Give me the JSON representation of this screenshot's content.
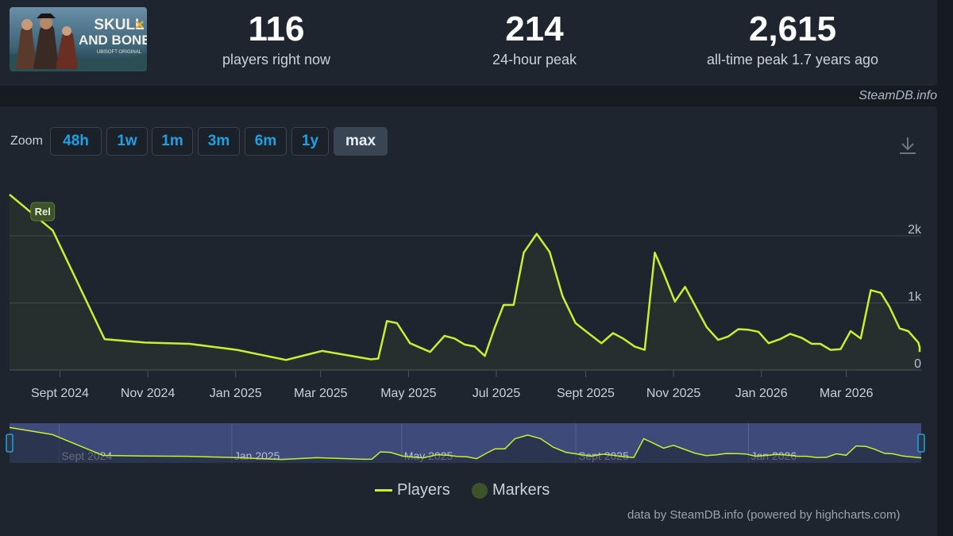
{
  "header": {
    "logo_text_line1": "SKULL",
    "logo_text_line2": "AND BONES",
    "logo_text_line3": "UBISOFT ORIGINAL",
    "stats": [
      {
        "value": "116",
        "label": "players right now"
      },
      {
        "value": "214",
        "label": "24-hour peak"
      },
      {
        "value": "2,615",
        "label": "all-time peak 1.7 years ago"
      }
    ]
  },
  "credit_top": "SteamDB.info",
  "zoom": {
    "label": "Zoom",
    "buttons": [
      "48h",
      "1w",
      "1m",
      "3m",
      "6m",
      "1y",
      "max"
    ],
    "active": "max"
  },
  "legend": {
    "players": "Players",
    "markers": "Markers"
  },
  "credit_bottom": "data by SteamDB.info (powered by highcharts.com)",
  "colors": {
    "line": "#c8f032",
    "marker": "#3d5229",
    "accent": "#1ea0e6",
    "navigator_bg": "#3d4a7a"
  },
  "chart_data": {
    "type": "line",
    "ylim": [
      0,
      2000
    ],
    "yticks": [
      {
        "v": 0,
        "label": "0"
      },
      {
        "v": 1000,
        "label": "1k"
      },
      {
        "v": 2000,
        "label": "2k"
      }
    ],
    "xlim": [
      "2024-07-28",
      "2026-04-22"
    ],
    "xticks": [
      {
        "d": "2024-09-01",
        "label": "Sept 2024"
      },
      {
        "d": "2024-11-01",
        "label": "Nov 2024"
      },
      {
        "d": "2025-01-01",
        "label": "Jan 2025"
      },
      {
        "d": "2025-03-01",
        "label": "Mar 2025"
      },
      {
        "d": "2025-05-01",
        "label": "May 2025"
      },
      {
        "d": "2025-07-01",
        "label": "Jul 2025"
      },
      {
        "d": "2025-09-01",
        "label": "Sept 2025"
      },
      {
        "d": "2025-11-01",
        "label": "Nov 2025"
      },
      {
        "d": "2026-01-01",
        "label": "Jan 2026"
      },
      {
        "d": "2026-03-01",
        "label": "Mar 2026"
      }
    ],
    "navigator_labels": [
      {
        "d": "2024-09-01",
        "label": "Sept 2024"
      },
      {
        "d": "2025-01-01",
        "label": "Jan 2025"
      },
      {
        "d": "2025-05-01",
        "label": "May 2025"
      },
      {
        "d": "2025-09-01",
        "label": "Sept 2025"
      },
      {
        "d": "2026-01-01",
        "label": "Jan 2026"
      }
    ],
    "markers": [
      {
        "d": "2024-08-20",
        "label": "Rel"
      }
    ],
    "series": [
      {
        "name": "Players",
        "points": [
          [
            "2024-07-28",
            2615
          ],
          [
            "2024-08-27",
            2080
          ],
          [
            "2024-10-02",
            460
          ],
          [
            "2024-10-30",
            410
          ],
          [
            "2024-11-30",
            390
          ],
          [
            "2025-01-02",
            300
          ],
          [
            "2025-02-05",
            150
          ],
          [
            "2025-03-02",
            285
          ],
          [
            "2025-04-05",
            160
          ],
          [
            "2025-04-10",
            170
          ],
          [
            "2025-04-16",
            730
          ],
          [
            "2025-04-23",
            700
          ],
          [
            "2025-05-02",
            400
          ],
          [
            "2025-05-16",
            270
          ],
          [
            "2025-05-26",
            510
          ],
          [
            "2025-06-02",
            470
          ],
          [
            "2025-06-09",
            380
          ],
          [
            "2025-06-16",
            350
          ],
          [
            "2025-06-23",
            210
          ],
          [
            "2025-06-30",
            640
          ],
          [
            "2025-07-06",
            970
          ],
          [
            "2025-07-13",
            970
          ],
          [
            "2025-07-20",
            1750
          ],
          [
            "2025-07-29",
            2030
          ],
          [
            "2025-08-07",
            1760
          ],
          [
            "2025-08-16",
            1100
          ],
          [
            "2025-08-25",
            700
          ],
          [
            "2025-09-04",
            530
          ],
          [
            "2025-09-12",
            400
          ],
          [
            "2025-09-20",
            550
          ],
          [
            "2025-09-27",
            470
          ],
          [
            "2025-10-05",
            350
          ],
          [
            "2025-10-12",
            300
          ],
          [
            "2025-10-19",
            1750
          ],
          [
            "2025-10-25",
            1450
          ],
          [
            "2025-11-02",
            1020
          ],
          [
            "2025-11-09",
            1240
          ],
          [
            "2025-11-17",
            920
          ],
          [
            "2025-11-24",
            640
          ],
          [
            "2025-12-02",
            450
          ],
          [
            "2025-12-09",
            500
          ],
          [
            "2025-12-16",
            610
          ],
          [
            "2025-12-23",
            600
          ],
          [
            "2025-12-30",
            570
          ],
          [
            "2026-01-06",
            400
          ],
          [
            "2026-01-14",
            460
          ],
          [
            "2026-01-21",
            540
          ],
          [
            "2026-01-29",
            480
          ],
          [
            "2026-02-05",
            390
          ],
          [
            "2026-02-11",
            390
          ],
          [
            "2026-02-18",
            300
          ],
          [
            "2026-02-25",
            310
          ],
          [
            "2026-03-04",
            580
          ],
          [
            "2026-03-11",
            470
          ],
          [
            "2026-03-18",
            1190
          ],
          [
            "2026-03-25",
            1150
          ],
          [
            "2026-03-31",
            940
          ],
          [
            "2026-04-07",
            620
          ],
          [
            "2026-04-13",
            580
          ],
          [
            "2026-04-20",
            410
          ],
          [
            "2026-04-27",
            340
          ],
          [
            "2026-05-03",
            270
          ]
        ]
      }
    ]
  }
}
